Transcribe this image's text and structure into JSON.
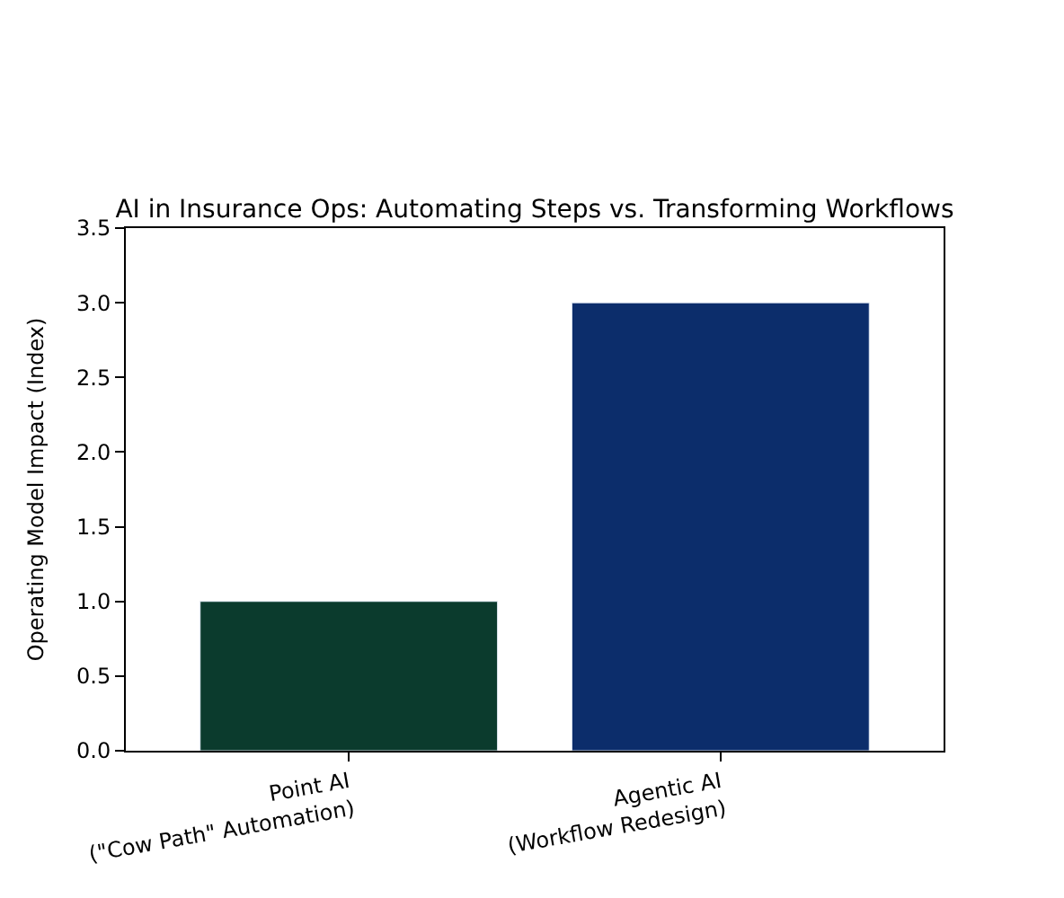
{
  "chart_data": {
    "type": "bar",
    "title": "AI in Insurance Ops: Automating Steps vs. Transforming Workflows",
    "ylabel": "Operating Model Impact (Index)",
    "categories": [
      "Point AI\n(\"Cow Path\" Automation)",
      "Agentic AI\n(Workflow Redesign)"
    ],
    "values": [
      1.0,
      3.0
    ],
    "colors": [
      "#0b3b2d",
      "#0c2d6b"
    ],
    "ylim": [
      0,
      3.5
    ],
    "yticks": [
      {
        "value": 0,
        "label": "0.0"
      },
      {
        "value": 0.5,
        "label": "0.5"
      },
      {
        "value": 1,
        "label": "1.0"
      },
      {
        "value": 1.5,
        "label": "1.5"
      },
      {
        "value": 2,
        "label": "2.0"
      },
      {
        "value": 2.5,
        "label": "2.5"
      },
      {
        "value": 3,
        "label": "3.0"
      },
      {
        "value": 3.5,
        "label": "3.5"
      }
    ]
  }
}
